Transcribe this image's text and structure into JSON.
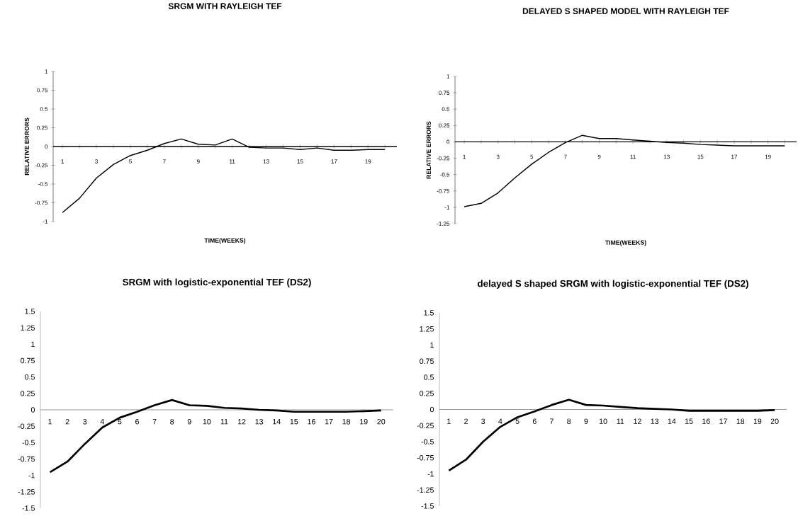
{
  "chart_data": [
    {
      "type": "line",
      "title": "SRGM WITH RAYLEIGH TEF",
      "xlabel": "TIME(WEEKS)",
      "ylabel": "RELATIVE ERRORS",
      "categories": [
        "1",
        null,
        "3",
        null,
        "5",
        null,
        "7",
        null,
        "9",
        null,
        "11",
        null,
        "13",
        null,
        "15",
        null,
        "17",
        null,
        "19",
        null
      ],
      "values": [
        -0.88,
        -0.69,
        -0.42,
        -0.24,
        -0.12,
        -0.05,
        0.04,
        0.1,
        0.03,
        0.02,
        0.1,
        -0.01,
        -0.02,
        -0.02,
        -0.04,
        -0.02,
        -0.05,
        -0.05,
        -0.04,
        -0.04
      ],
      "color": "#000000",
      "ylim": [
        -1,
        1
      ],
      "yticks": [
        -1,
        -0.75,
        -0.5,
        -0.25,
        0,
        0.25,
        0.5,
        0.75,
        1
      ],
      "marker": "none",
      "line_style": "solid"
    },
    {
      "type": "line",
      "title": "DELAYED S SHAPED MODEL WITH RAYLEIGH TEF",
      "xlabel": "TIME(WEEKS)",
      "ylabel": "RELATIVE ERRORS",
      "categories": [
        "1",
        null,
        "3",
        null,
        "5",
        null,
        "7",
        null,
        "9",
        null,
        "11",
        null,
        "13",
        null,
        "15",
        null,
        "17",
        null,
        "19",
        null
      ],
      "values": [
        -0.99,
        -0.94,
        -0.78,
        -0.55,
        -0.34,
        -0.16,
        -0.01,
        0.1,
        0.05,
        0.05,
        0.03,
        0.01,
        -0.01,
        -0.02,
        -0.04,
        -0.05,
        -0.06,
        -0.06,
        -0.06,
        -0.06
      ],
      "color": "#000000",
      "ylim": [
        -1.25,
        1
      ],
      "yticks": [
        -1.25,
        -1,
        -0.75,
        -0.5,
        -0.25,
        0,
        0.25,
        0.5,
        0.75,
        1
      ],
      "marker": "none",
      "line_style": "solid"
    },
    {
      "type": "line",
      "title": "SRGM with logistic-exponential TEF (DS2)",
      "categories": [
        "1",
        "2",
        "3",
        "4",
        "5",
        "6",
        "7",
        "8",
        "9",
        "10",
        "11",
        "12",
        "13",
        "14",
        "15",
        "16",
        "17",
        "18",
        "19",
        "20"
      ],
      "values": [
        -0.95,
        -0.79,
        -0.52,
        -0.27,
        -0.12,
        -0.03,
        0.07,
        0.15,
        0.07,
        0.06,
        0.03,
        0.02,
        0.0,
        -0.01,
        -0.03,
        -0.03,
        -0.03,
        -0.03,
        -0.02,
        -0.01
      ],
      "color": "#000000",
      "ylim": [
        -1.5,
        1.5
      ],
      "yticks": [
        -1.5,
        -1.25,
        -1,
        -0.75,
        -0.5,
        -0.25,
        0,
        0.25,
        0.5,
        0.75,
        1,
        1.25,
        1.5
      ],
      "marker": "none",
      "line_style": "solid"
    },
    {
      "type": "line",
      "title": "delayed S shaped SRGM with logistic-exponential TEF (DS2)",
      "categories": [
        "1",
        "2",
        "3",
        "4",
        "5",
        "6",
        "7",
        "8",
        "9",
        "10",
        "11",
        "12",
        "13",
        "14",
        "15",
        "16",
        "17",
        "18",
        "19",
        "20"
      ],
      "values": [
        -0.95,
        -0.78,
        -0.5,
        -0.27,
        -0.12,
        -0.03,
        0.07,
        0.15,
        0.07,
        0.06,
        0.04,
        0.02,
        0.01,
        0.0,
        -0.02,
        -0.02,
        -0.02,
        -0.02,
        -0.02,
        -0.01
      ],
      "color": "#000000",
      "ylim": [
        -1.5,
        1.5
      ],
      "yticks": [
        -1.5,
        -1.25,
        -1,
        -0.75,
        -0.5,
        -0.25,
        0,
        0.25,
        0.5,
        0.75,
        1,
        1.25,
        1.5
      ],
      "marker": "none",
      "line_style": "solid"
    }
  ]
}
